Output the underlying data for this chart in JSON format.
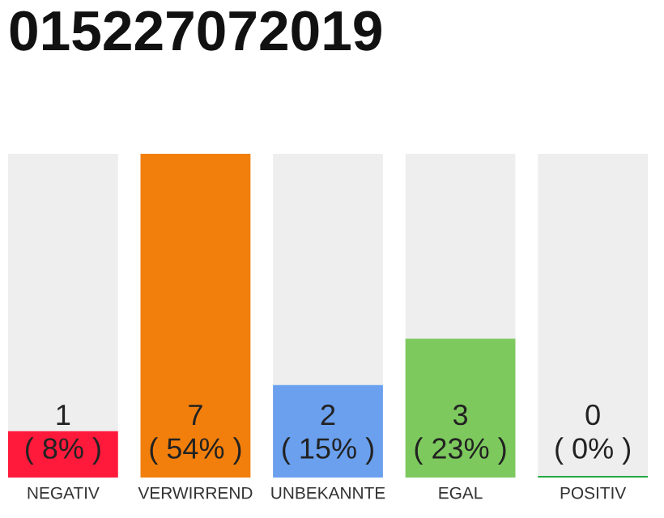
{
  "chart_data": {
    "type": "bar",
    "title": "015227072019",
    "categories": [
      "NEGATIV",
      "VERWIRREND",
      "UNBEKANNTE",
      "EGAL",
      "POSITIV"
    ],
    "values": [
      1,
      7,
      2,
      3,
      0
    ],
    "colors": [
      "#ff1a3c",
      "#f27f0c",
      "#6aa0ee",
      "#7dc95e",
      "#22aa44"
    ],
    "value_labels": [
      "1\n( 8% )",
      "7\n( 54% )",
      "2\n( 15% )",
      "3\n( 23% )",
      "0\n( 0% )"
    ],
    "grid": false,
    "legend": false
  }
}
